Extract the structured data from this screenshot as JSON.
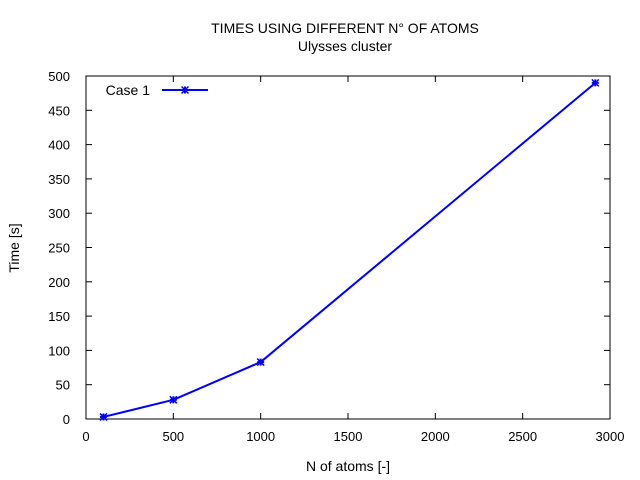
{
  "chart_data": {
    "type": "line",
    "title": "TIMES USING DIFFERENT N° OF ATOMS",
    "subtitle": "Ulysses cluster",
    "xlabel": "N of atoms [-]",
    "ylabel": "Time [s]",
    "xlim": [
      0,
      3000
    ],
    "ylim": [
      0,
      500
    ],
    "xticks": [
      0,
      500,
      1000,
      1500,
      2000,
      2500,
      3000
    ],
    "yticks": [
      0,
      50,
      100,
      150,
      200,
      250,
      300,
      350,
      400,
      450,
      500
    ],
    "grid": false,
    "legend_position": "top-left",
    "series": [
      {
        "name": "Case 1",
        "color": "#0000ff",
        "marker": "star",
        "x": [
          100,
          500,
          1000,
          2916
        ],
        "y": [
          3,
          28,
          83,
          490
        ]
      }
    ]
  }
}
